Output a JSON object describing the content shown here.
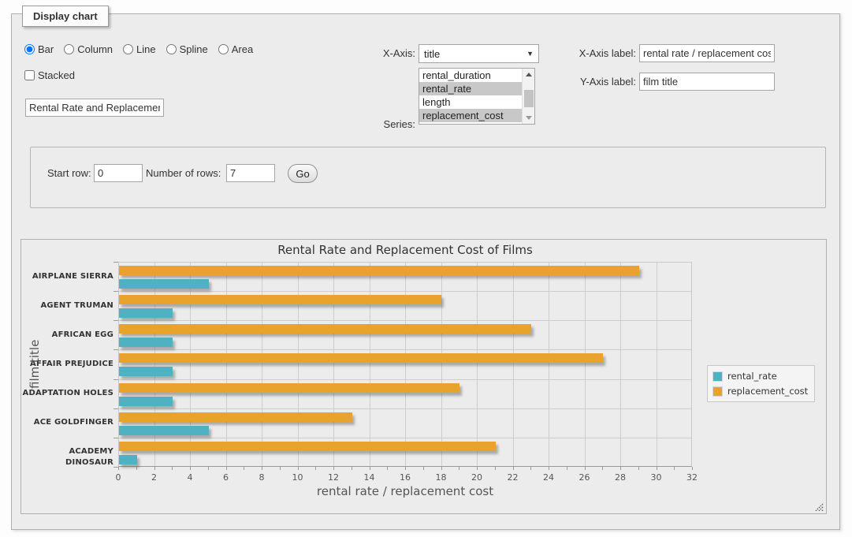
{
  "panel": {
    "legend": "Display chart"
  },
  "controls": {
    "chart_types": [
      {
        "label": "Bar",
        "checked": true
      },
      {
        "label": "Column",
        "checked": false
      },
      {
        "label": "Line",
        "checked": false
      },
      {
        "label": "Spline",
        "checked": false
      },
      {
        "label": "Area",
        "checked": false
      }
    ],
    "stacked_label": "Stacked",
    "stacked_checked": false,
    "title_input_value": "Rental Rate and Replacement Cost of Films",
    "x_axis_select": {
      "label": "X-Axis:",
      "value": "title"
    },
    "series_list": {
      "label": "Series:",
      "options": [
        {
          "label": "rental_duration",
          "selected": false
        },
        {
          "label": "rental_rate",
          "selected": true
        },
        {
          "label": "length",
          "selected": false
        },
        {
          "label": "replacement_cost",
          "selected": true
        }
      ]
    },
    "x_axis_label_field": {
      "label": "X-Axis label:",
      "value": "rental rate / replacement cost"
    },
    "y_axis_label_field": {
      "label": "Y-Axis label:",
      "value": "film title"
    }
  },
  "row_controls": {
    "start_row_label": "Start row:",
    "start_row_value": "0",
    "num_rows_label": "Number of rows:",
    "num_rows_value": "7",
    "go_label": "Go"
  },
  "chart_data": {
    "type": "bar",
    "orientation": "horizontal",
    "title": "Rental Rate and Replacement Cost of Films",
    "categories": [
      "AIRPLANE SIERRA",
      "AGENT TRUMAN",
      "AFRICAN EGG",
      "AFFAIR PREJUDICE",
      "ADAPTATION HOLES",
      "ACE GOLDFINGER",
      "ACADEMY DINOSAUR"
    ],
    "series": [
      {
        "name": "rental_rate",
        "color": "#4fb1c3",
        "values": [
          4.99,
          2.99,
          2.99,
          2.99,
          2.99,
          4.99,
          0.99
        ]
      },
      {
        "name": "replacement_cost",
        "color": "#e9a22e",
        "values": [
          28.99,
          17.99,
          22.99,
          26.99,
          18.99,
          12.99,
          20.99
        ]
      }
    ],
    "xlabel": "rental rate / replacement cost",
    "ylabel": "film title",
    "xlim": [
      0,
      32
    ],
    "x_tick_step": 2,
    "x_minor_tick_step": 1,
    "grid": true,
    "legend_position": "right"
  },
  "colors": {
    "panel_bg": "#ececec",
    "grid": "#cdcdcd",
    "axis_line": "#999999",
    "selected_option_bg": "#c8c8c8"
  },
  "icons": {
    "dropdown_arrow": "▾"
  }
}
